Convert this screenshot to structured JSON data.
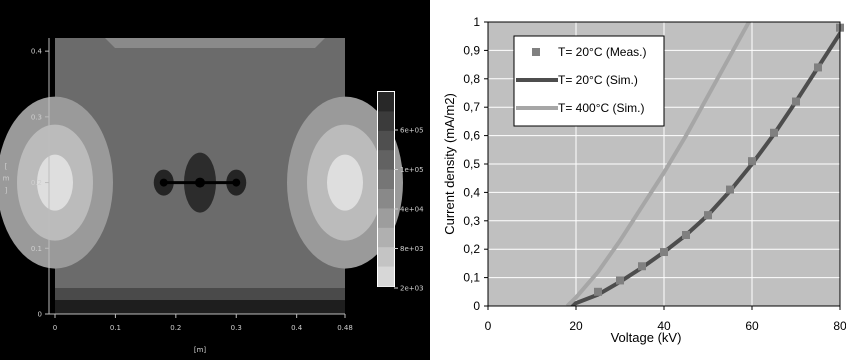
{
  "chart_data": [
    {
      "type": "heatmap",
      "xlabel": "[m]",
      "ylabel": "[\nm\n]",
      "x_ticks": [
        "0",
        "0.1",
        "0.2",
        "0.3",
        "0.4",
        "0.48"
      ],
      "y_ticks": [
        "0",
        "0.1",
        "0.2",
        "0.3",
        "0.4"
      ],
      "xlim": [
        0,
        0.48
      ],
      "ylim": [
        0,
        0.42
      ],
      "colorbar_labels": [
        "6e+05",
        "1e+05",
        "4e+04",
        "8e+03",
        "2e+03"
      ],
      "colors": {
        "background": "#000000",
        "plot_gray": "#6b6b6b",
        "light_outer": "#bbbbbb",
        "light_inner": "#dedede",
        "dark_core": "#1e1e1e"
      }
    },
    {
      "type": "line",
      "xlabel": "Voltage (kV)",
      "ylabel": "Current density (mA/m2)",
      "xlim": [
        0,
        80
      ],
      "ylim": [
        0,
        1
      ],
      "x_ticks": [
        "0",
        "20",
        "40",
        "60",
        "80"
      ],
      "y_ticks": [
        "0",
        "0,1",
        "0,2",
        "0,3",
        "0,4",
        "0,5",
        "0,6",
        "0,7",
        "0,8",
        "0,9",
        "1"
      ],
      "grid": true,
      "legend_position": "top-left",
      "series": [
        {
          "name": "T= 20°C (Meas.)",
          "style": "markers",
          "color": "#808080",
          "x": [
            25,
            30,
            35,
            40,
            45,
            50,
            55,
            60,
            65,
            70,
            75,
            80
          ],
          "y": [
            0.05,
            0.09,
            0.14,
            0.19,
            0.25,
            0.32,
            0.41,
            0.51,
            0.61,
            0.72,
            0.84,
            0.98
          ]
        },
        {
          "name": "T= 20°C (Sim.)",
          "style": "line",
          "color": "#4d4d4d",
          "x": [
            18,
            20,
            25,
            30,
            35,
            40,
            45,
            50,
            55,
            60,
            65,
            70,
            75,
            80,
            83
          ],
          "y": [
            0,
            0.01,
            0.04,
            0.085,
            0.135,
            0.19,
            0.25,
            0.32,
            0.405,
            0.5,
            0.605,
            0.72,
            0.84,
            0.96,
            1.03
          ]
        },
        {
          "name": "T= 400°C (Sim.)",
          "style": "line",
          "color": "#a6a6a6",
          "x": [
            18,
            20,
            25,
            30,
            35,
            40,
            45,
            50,
            55,
            60
          ],
          "y": [
            0,
            0.03,
            0.12,
            0.23,
            0.35,
            0.47,
            0.6,
            0.74,
            0.88,
            1.02
          ]
        }
      ]
    }
  ]
}
